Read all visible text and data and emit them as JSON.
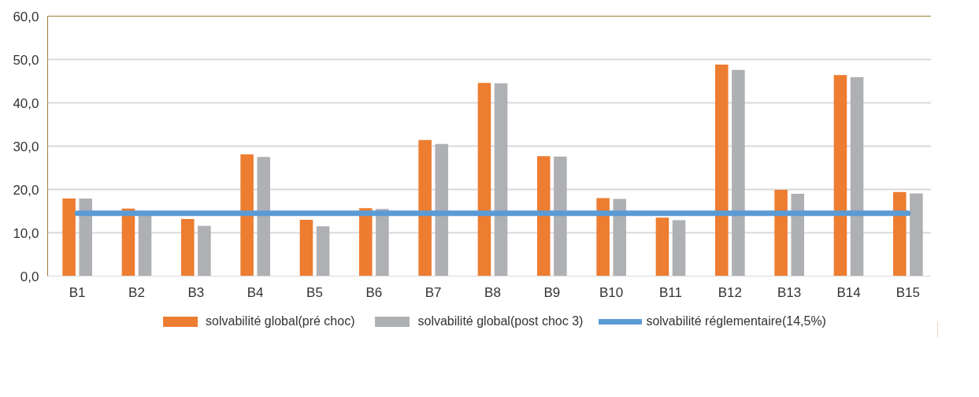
{
  "chart_data": {
    "type": "bar",
    "categories": [
      "B1",
      "B2",
      "B3",
      "B4",
      "B5",
      "B6",
      "B7",
      "B8",
      "B9",
      "B10",
      "B11",
      "B12",
      "B13",
      "B14",
      "B15"
    ],
    "series": [
      {
        "name": "solvabilité global(pré choc)",
        "color": "#ed7d31",
        "values": [
          17.9,
          15.6,
          13.2,
          28.1,
          13.0,
          15.7,
          31.4,
          44.6,
          27.7,
          18.0,
          13.5,
          48.8,
          19.9,
          46.4,
          19.4
        ]
      },
      {
        "name": "solvabilité global(post choc 3)",
        "color": "#afb0b3",
        "values": [
          17.9,
          14.4,
          11.6,
          27.5,
          11.5,
          15.5,
          30.5,
          44.5,
          27.6,
          17.8,
          12.9,
          47.6,
          19.0,
          45.9,
          19.1
        ]
      },
      {
        "name": "solvabilité réglementaire(14,5%)",
        "color": "#5b9bd5",
        "type": "line",
        "values": [
          14.5,
          14.5,
          14.5,
          14.5,
          14.5,
          14.5,
          14.5,
          14.5,
          14.5,
          14.5,
          14.5,
          14.5,
          14.5,
          14.5,
          14.5
        ]
      }
    ],
    "ylim": [
      0,
      60
    ],
    "yticks": [
      {
        "value": 0,
        "label": "0,0"
      },
      {
        "value": 10,
        "label": "10,0"
      },
      {
        "value": 20,
        "label": "20,0"
      },
      {
        "value": 30,
        "label": "30,0"
      },
      {
        "value": 40,
        "label": "40,0"
      },
      {
        "value": 50,
        "label": "50,0"
      },
      {
        "value": 60,
        "label": "60,0"
      }
    ],
    "grid": "y",
    "legend": "bottom"
  }
}
